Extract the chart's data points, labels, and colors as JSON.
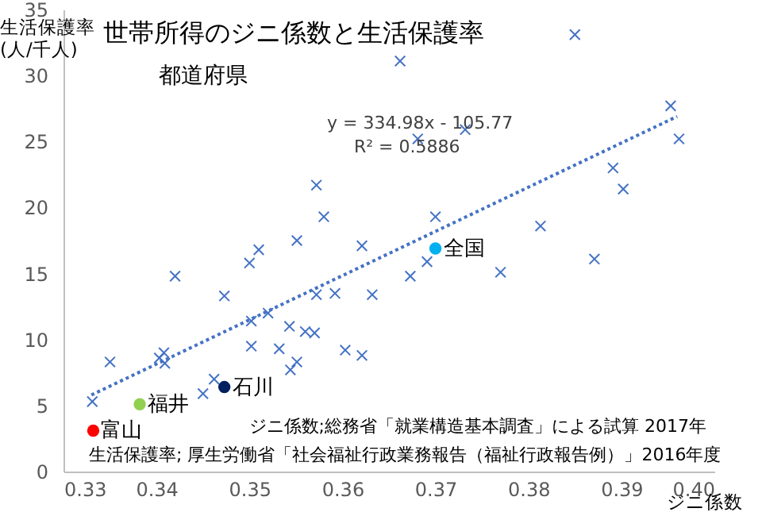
{
  "chart_data": {
    "type": "scatter",
    "title": "世帯所得のジニ係数と生活保護率",
    "subtitle": "都道府県",
    "xlabel": "ジニ係数",
    "ylabel": "生活保護率\n(人/千人)",
    "xlim": [
      0.33,
      0.4
    ],
    "xticks": [
      {
        "value": 0.33,
        "label": "0.33"
      },
      {
        "value": 0.34,
        "label": "0.34"
      },
      {
        "value": 0.35,
        "label": "0.35"
      },
      {
        "value": 0.36,
        "label": "0.36"
      },
      {
        "value": 0.37,
        "label": "0.37"
      },
      {
        "value": 0.38,
        "label": "0.38"
      },
      {
        "value": 0.39,
        "label": "0.39"
      },
      {
        "value": 0.4,
        "label": "0.40"
      }
    ],
    "ylim": [
      0,
      35
    ],
    "yticks": [
      0,
      5,
      10,
      15,
      20,
      25,
      30,
      35
    ],
    "grid": false,
    "annotations": [
      "y = 334.98x - 105.77",
      "R² = 0.5886",
      "ジニ係数;総務省「就業構造基本調査」による試算 2017年",
      "生活保護率; 厚生労働省「社会福祉行政業務報告（福祉行政報告例）」2016年度"
    ],
    "series": [
      {
        "marker": "cross",
        "color": "#4472c4",
        "x": [
          0.3572,
          0.358,
          0.351,
          0.3551,
          0.3621,
          0.385,
          0.3662,
          0.3953,
          0.3962,
          0.3681,
          0.3732,
          0.3891,
          0.3902,
          0.37,
          0.3813,
          0.335,
          0.3331,
          0.342,
          0.3473,
          0.35,
          0.3403,
          0.3408,
          0.3409,
          0.3462,
          0.345,
          0.3502,
          0.352,
          0.3502,
          0.3532,
          0.3543,
          0.356,
          0.357,
          0.3572,
          0.3592,
          0.3632,
          0.3544,
          0.3551,
          0.3603,
          0.3621,
          0.3691,
          0.3673,
          0.377,
          0.3871
        ],
        "values": [
          21.7,
          19.3,
          16.8,
          17.5,
          17.1,
          33.1,
          31.1,
          27.7,
          25.2,
          25.2,
          25.9,
          23.0,
          21.4,
          19.3,
          18.6,
          8.3,
          5.3,
          14.8,
          13.3,
          15.8,
          8.6,
          9.0,
          8.2,
          7.0,
          5.9,
          11.4,
          12.0,
          9.5,
          9.3,
          11.0,
          10.6,
          10.5,
          13.4,
          13.5,
          13.4,
          7.7,
          8.3,
          9.2,
          8.8,
          15.9,
          14.8,
          15.1,
          16.1
        ]
      },
      {
        "name": "富山",
        "marker": "circle",
        "color": "#ff0000",
        "x": [
          0.3332
        ],
        "values": [
          3.1
        ]
      },
      {
        "name": "福井",
        "marker": "circle",
        "color": "#92d050",
        "x": [
          0.3382
        ],
        "values": [
          5.1
        ]
      },
      {
        "name": "石川",
        "marker": "circle",
        "color": "#002060",
        "x": [
          0.3473
        ],
        "values": [
          6.4
        ]
      },
      {
        "name": "全国",
        "marker": "circle",
        "color": "#00b0f0",
        "x": [
          0.37
        ],
        "values": [
          16.9
        ]
      },
      {
        "type": "line",
        "line_style": "dotted",
        "color": "#4472c4",
        "x": [
          0.333,
          0.396
        ],
        "values": [
          5.8,
          26.9
        ]
      }
    ]
  }
}
